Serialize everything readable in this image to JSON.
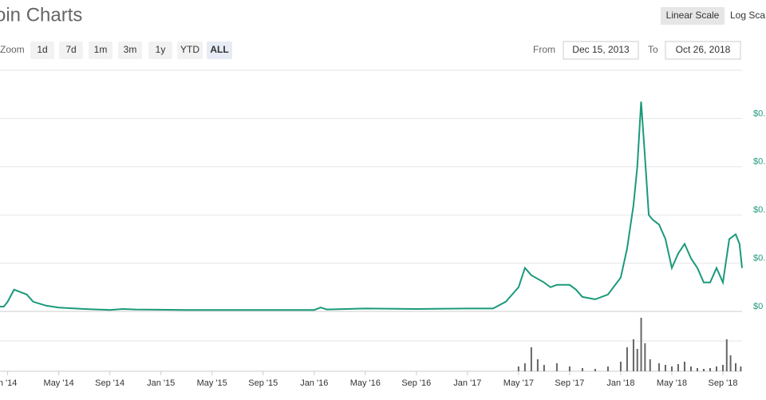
{
  "header": {
    "title": "oin Charts",
    "scale_buttons": [
      "Linear Scale",
      "Log Sca"
    ]
  },
  "zoom": {
    "label": "Zoom",
    "buttons": [
      "1d",
      "7d",
      "1m",
      "3m",
      "1y",
      "YTD",
      "ALL"
    ]
  },
  "range": {
    "from_label": "From",
    "from": "Dec 15, 2013",
    "to_label": "To",
    "to": "Oct 26, 2018"
  },
  "chart_data": {
    "type": "line",
    "x": [
      -0.6,
      -0.3,
      0,
      0.5,
      1,
      1.5,
      2,
      3,
      4,
      6,
      8,
      9,
      10,
      14,
      18,
      22,
      24,
      24.5,
      25,
      28,
      32,
      36,
      38,
      39,
      40,
      40.5,
      41,
      42,
      42.5,
      43,
      44,
      44.5,
      45,
      46,
      47,
      48,
      48.5,
      49,
      49.3,
      49.6,
      49.9,
      50.2,
      50.5,
      51,
      51.5,
      52,
      52.5,
      53,
      53.5,
      54,
      54.5,
      55,
      55.5,
      56,
      56.5,
      57,
      57.3,
      57.5
    ],
    "series": [
      {
        "color": "#1a9a7a",
        "values": [
          0.1,
          0.1,
          0.2,
          0.45,
          0.4,
          0.35,
          0.2,
          0.12,
          0.08,
          0.05,
          0.03,
          0.05,
          0.04,
          0.03,
          0.03,
          0.03,
          0.03,
          0.08,
          0.04,
          0.06,
          0.05,
          0.06,
          0.06,
          0.2,
          0.5,
          0.9,
          0.75,
          0.6,
          0.5,
          0.55,
          0.55,
          0.45,
          0.3,
          0.25,
          0.35,
          0.7,
          1.3,
          2.2,
          3.0,
          4.35,
          3.2,
          2.0,
          1.9,
          1.8,
          1.5,
          0.9,
          1.2,
          1.4,
          1.1,
          0.9,
          0.6,
          0.6,
          0.9,
          0.6,
          1.5,
          1.6,
          1.4,
          0.9
        ]
      }
    ],
    "xlim": [
      -0.6,
      57.5
    ],
    "ylim": [
      0,
      5
    ],
    "xticks": [
      {
        "value": 0,
        "label": "n '14"
      },
      {
        "value": 4,
        "label": "May '14"
      },
      {
        "value": 8,
        "label": "Sep '14"
      },
      {
        "value": 12,
        "label": "Jan '15"
      },
      {
        "value": 16,
        "label": "May '15"
      },
      {
        "value": 20,
        "label": "Sep '15"
      },
      {
        "value": 24,
        "label": "Jan '16"
      },
      {
        "value": 28,
        "label": "May '16"
      },
      {
        "value": 32,
        "label": "Sep '16"
      },
      {
        "value": 36,
        "label": "Jan '17"
      },
      {
        "value": 40,
        "label": "May '17"
      },
      {
        "value": 44,
        "label": "Sep '17"
      },
      {
        "value": 48,
        "label": "Jan '18"
      },
      {
        "value": 52,
        "label": "May '18"
      },
      {
        "value": 56,
        "label": "Sep '18"
      }
    ],
    "yticks": [
      {
        "value": 0,
        "label": "$0"
      },
      {
        "value": 1,
        "label": "$0."
      },
      {
        "value": 2,
        "label": "$0."
      },
      {
        "value": 3,
        "label": "$0."
      },
      {
        "value": 4,
        "label": "$0."
      }
    ],
    "grid": true,
    "volume": {
      "color": "#666666",
      "ylim": [
        0,
        80
      ],
      "x": [
        40,
        40.5,
        41,
        41.5,
        42,
        43,
        44,
        45,
        46,
        47,
        48,
        48.5,
        49,
        49.3,
        49.6,
        49.9,
        50.3,
        51,
        51.5,
        52,
        52.5,
        53,
        53.5,
        54,
        54.5,
        55,
        55.5,
        56,
        56.3,
        56.6,
        57,
        57.4
      ],
      "values": [
        6,
        10,
        30,
        15,
        8,
        10,
        6,
        4,
        3,
        6,
        12,
        30,
        40,
        28,
        67,
        35,
        15,
        10,
        8,
        6,
        9,
        12,
        6,
        4,
        3,
        4,
        6,
        8,
        40,
        20,
        10,
        6
      ]
    }
  }
}
